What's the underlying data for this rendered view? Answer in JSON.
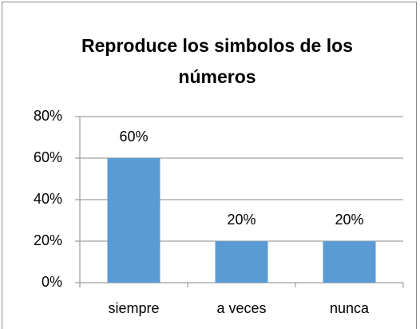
{
  "chart_data": {
    "type": "bar",
    "title": "Reproduce los simbolos de los números",
    "categories": [
      "siempre",
      "a veces",
      "nunca"
    ],
    "values": [
      60,
      20,
      20
    ],
    "value_labels": [
      "60%",
      "20%",
      "20%"
    ],
    "color": "#5b9bd5",
    "ylim": [
      0,
      80
    ],
    "yticks": [
      {
        "value": 0,
        "label": "0%"
      },
      {
        "value": 20,
        "label": "20%"
      },
      {
        "value": 40,
        "label": "40%"
      },
      {
        "value": 60,
        "label": "60%"
      },
      {
        "value": 80,
        "label": "80%"
      }
    ],
    "grid": true
  }
}
